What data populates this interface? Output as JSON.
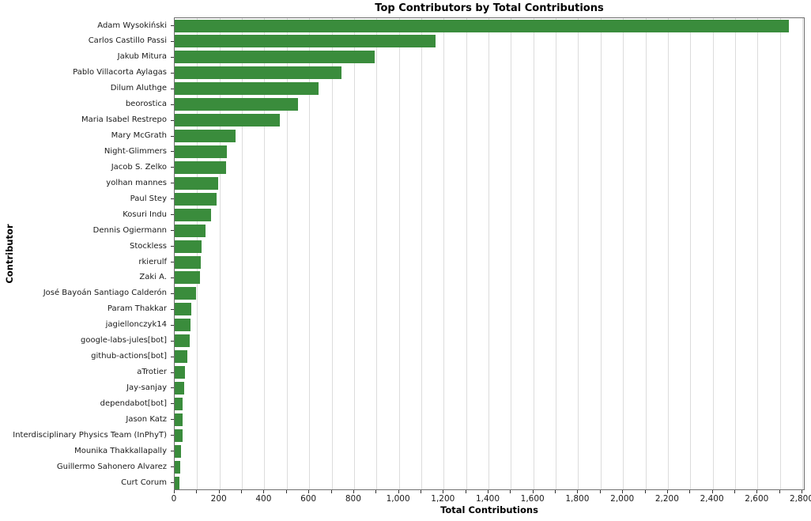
{
  "chart_data": {
    "type": "bar",
    "orientation": "horizontal",
    "title": "Top Contributors by Total Contributions",
    "xlabel": "Total Contributions",
    "ylabel": "Contributor",
    "xlim": [
      0,
      2814
    ],
    "grid": true,
    "grid_step": 100,
    "tick_step": 100,
    "label_step": 200,
    "legend": "none",
    "bar_color": "#3a8c3c",
    "background_color": "#ffffff",
    "gridline_color": "#dcdcdc",
    "x_tick_labels": [
      "0",
      "200",
      "400",
      "600",
      "800",
      "1,000",
      "1,200",
      "1,400",
      "1,600",
      "1,800",
      "2,000",
      "2,200",
      "2,400",
      "2,600",
      "2,800"
    ],
    "categories": [
      "Adam Wysokiński",
      "Carlos Castillo Passi",
      "Jakub Mitura",
      "Pablo Villacorta Aylagas",
      "Dilum Aluthge",
      "beorostica",
      "Maria Isabel Restrepo",
      "Mary McGrath",
      "Night-Glimmers",
      "Jacob S. Zelko",
      "yolhan mannes",
      "Paul Stey",
      "Kosuri Indu",
      "Dennis Ogiermann",
      "Stockless",
      "rkierulf",
      "Zaki A.",
      "José Bayoán Santiago Calderón",
      "Param Thakkar",
      "jagiellonczyk14",
      "google-labs-jules[bot]",
      "github-actions[bot]",
      "aTrotier",
      "Jay-sanjay",
      "dependabot[bot]",
      "Jason Katz",
      "Interdisciplinary Physics Team (InPhyT)",
      "Mounika Thakkallapally",
      "Guillermo Sahonero Alvarez",
      "Curt Corum"
    ],
    "values": [
      2740,
      1165,
      893,
      745,
      643,
      551,
      469,
      270,
      231,
      230,
      193,
      187,
      163,
      138,
      120,
      117,
      113,
      96,
      75,
      69,
      67,
      57,
      47,
      41,
      36,
      35,
      35,
      27,
      25,
      22
    ]
  }
}
